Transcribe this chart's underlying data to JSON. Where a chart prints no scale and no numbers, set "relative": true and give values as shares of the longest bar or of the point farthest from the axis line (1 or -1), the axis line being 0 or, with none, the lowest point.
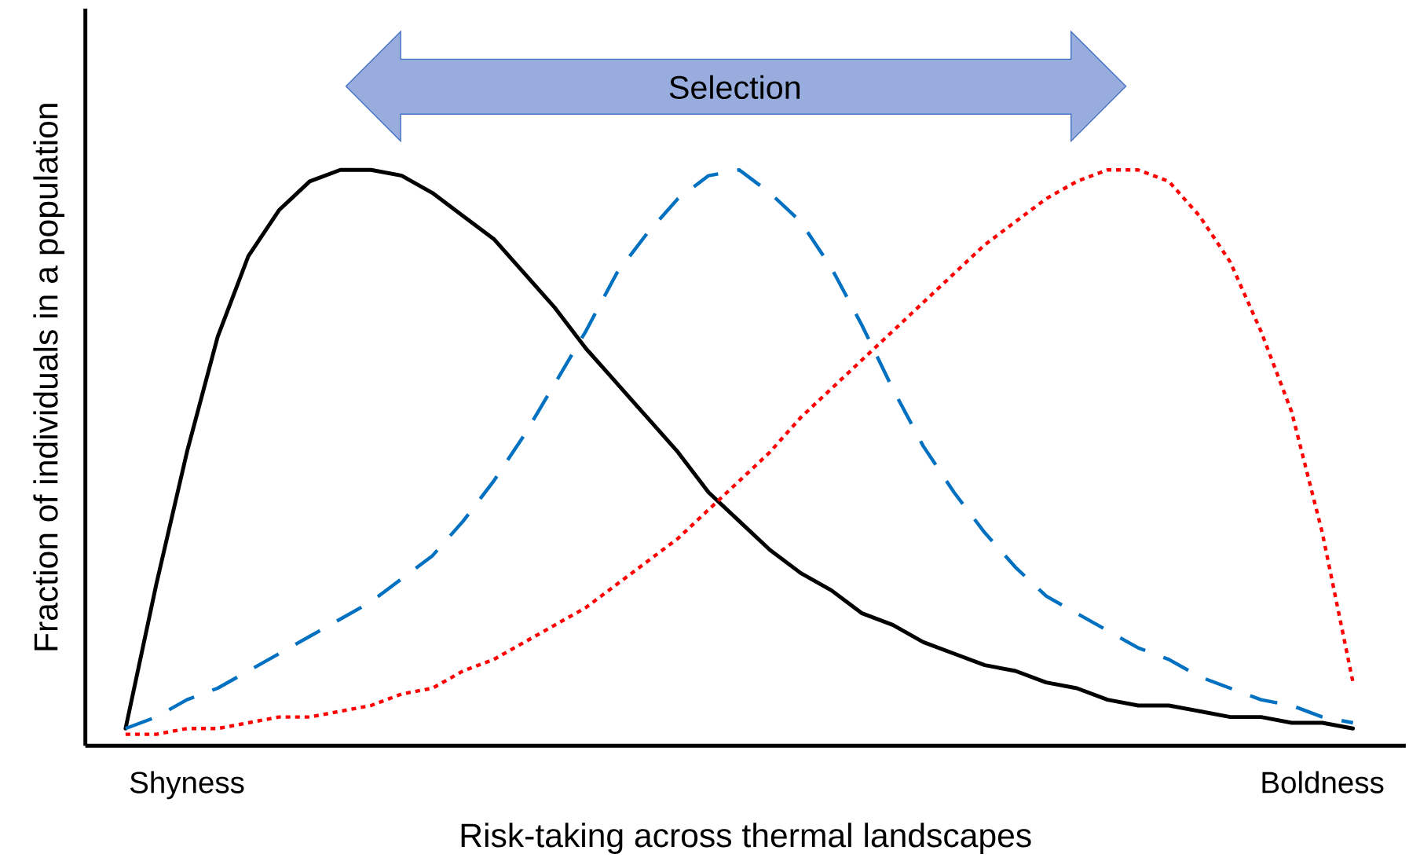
{
  "chart_data": {
    "type": "line",
    "relative": true,
    "xlabel": "Risk-taking across thermal landscapes",
    "ylabel": "Fraction of individuals in a population",
    "annotations": [
      "Selection"
    ],
    "categories": [
      null,
      null,
      "Shyness",
      null,
      null,
      null,
      null,
      null,
      null,
      null,
      null,
      null,
      null,
      null,
      null,
      null,
      null,
      null,
      null,
      null,
      null,
      null,
      null,
      null,
      null,
      null,
      null,
      null,
      null,
      null,
      null,
      null,
      null,
      null,
      null,
      null,
      null,
      null,
      null,
      "Boldness",
      null
    ],
    "marker": "none",
    "grid": false,
    "series": [
      {
        "color": "#000000",
        "line_style": "solid",
        "values": [
          0.03,
          0.28,
          0.51,
          0.71,
          0.85,
          0.93,
          0.98,
          1.0,
          1.0,
          0.99,
          0.96,
          0.92,
          0.88,
          0.82,
          0.76,
          0.69,
          0.63,
          0.57,
          0.51,
          0.44,
          0.39,
          0.34,
          0.3,
          0.27,
          0.23,
          0.21,
          0.18,
          0.16,
          0.14,
          0.13,
          0.11,
          0.1,
          0.08,
          0.07,
          0.07,
          0.06,
          0.05,
          0.05,
          0.04,
          0.04,
          0.03
        ]
      },
      {
        "color": "#0070c0",
        "line_style": "dashed",
        "values": [
          0.03,
          0.05,
          0.08,
          0.1,
          0.13,
          0.16,
          0.19,
          0.22,
          0.25,
          0.29,
          0.33,
          0.39,
          0.46,
          0.54,
          0.63,
          0.72,
          0.82,
          0.89,
          0.95,
          0.99,
          1.0,
          0.96,
          0.91,
          0.83,
          0.73,
          0.62,
          0.52,
          0.44,
          0.37,
          0.31,
          0.26,
          0.23,
          0.2,
          0.17,
          0.15,
          0.12,
          0.1,
          0.08,
          0.07,
          0.05,
          0.04
        ]
      },
      {
        "color": "#ff0000",
        "line_style": "dotted",
        "values": [
          0.02,
          0.02,
          0.03,
          0.03,
          0.04,
          0.05,
          0.05,
          0.06,
          0.07,
          0.09,
          0.1,
          0.13,
          0.15,
          0.18,
          0.21,
          0.24,
          0.28,
          0.32,
          0.36,
          0.41,
          0.46,
          0.51,
          0.57,
          0.62,
          0.67,
          0.72,
          0.77,
          0.82,
          0.87,
          0.91,
          0.95,
          0.98,
          1.0,
          1.0,
          0.98,
          0.92,
          0.84,
          0.72,
          0.58,
          0.37,
          0.11
        ]
      }
    ]
  }
}
